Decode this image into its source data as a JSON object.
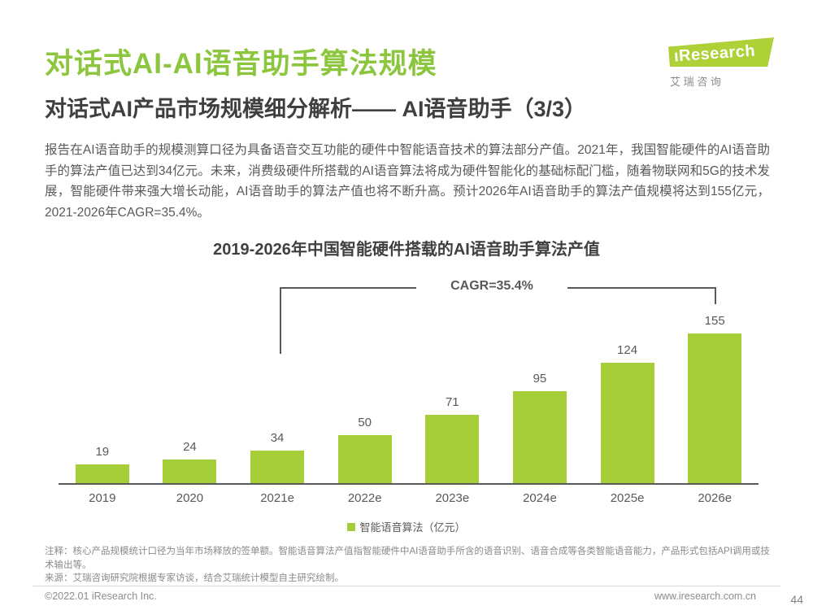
{
  "page": {
    "title": "对话式AI-AI语音助手算法规模",
    "subtitle": "对话式AI产品市场规模细分解析—— AI语音助手（3/3）",
    "body": "报告在AI语音助手的规模测算口径为具备语音交互功能的硬件中智能语音技术的算法部分产值。2021年，我国智能硬件的AI语音助手的算法产值已达到34亿元。未来，消费级硬件所搭载的AI语音算法将成为硬件智能化的基础标配门槛，随着物联网和5G的技术发展，智能硬件带来强大增长动能，AI语音助手的算法产值也将不断升高。预计2026年AI语音助手的算法产值规模将达到155亿元，2021-2026年CAGR=35.4%。",
    "page_number": "44"
  },
  "logo": {
    "brand": "Research",
    "brand_i": "ı",
    "caption_chars": "艾 瑞 咨 询"
  },
  "chart_data": {
    "type": "bar",
    "title": "2019-2026年中国智能硬件搭载的AI语音助手算法产值",
    "categories": [
      "2019",
      "2020",
      "2021e",
      "2022e",
      "2023e",
      "2024e",
      "2025e",
      "2026e"
    ],
    "values": [
      19,
      24,
      34,
      50,
      71,
      95,
      124,
      155
    ],
    "series_name": "智能语音算法（亿元）",
    "unit": "亿元",
    "annotation": "CAGR=35.4%",
    "annotation_span": [
      "2021e",
      "2026e"
    ],
    "bar_color": "#A5CE39",
    "ylim": [
      0,
      190
    ],
    "grid": false,
    "legend_position": "bottom"
  },
  "footnotes": {
    "note": "注释：核心产品规模统计口径为当年市场释放的签单额。智能语音算法产值指智能硬件中AI语音助手所含的语音识别、语音合成等各类智能语音能力，产品形式包括API调用或技术输出等。",
    "source": "来源：艾瑞咨询研究院根据专家访谈，结合艾瑞统计模型自主研究绘制。"
  },
  "footer": {
    "left": "©2022.01 iResearch Inc.",
    "right": "www.iresearch.com.cn"
  },
  "colors": {
    "title_green": "#8CC63F",
    "bar_green": "#A5CE39",
    "logo_green": "#ADD136",
    "text_dark": "#3F3F3F",
    "text_gray": "#595959",
    "footnote_gray": "#8A8A8A"
  }
}
